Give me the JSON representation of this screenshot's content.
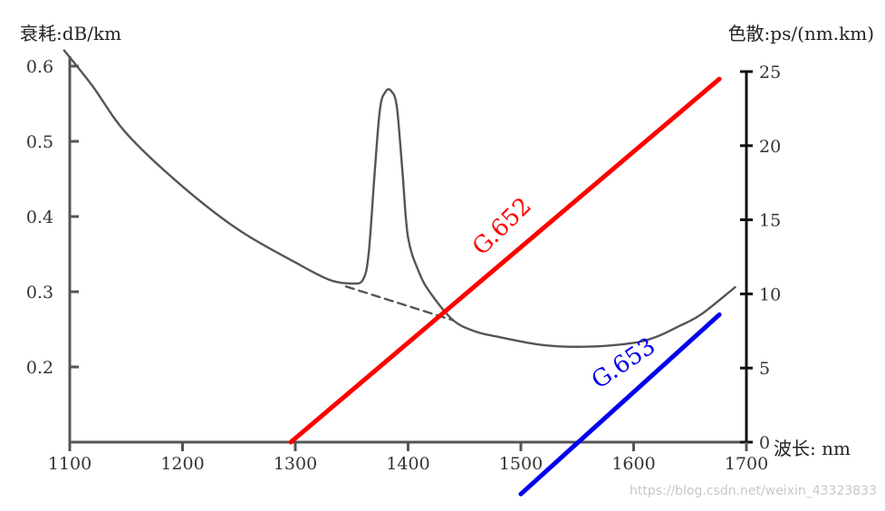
{
  "chart_data": {
    "type": "line",
    "left_axis": {
      "label": "衰耗:dB/km",
      "ticks": [
        "0.2",
        "0.3",
        "0.4",
        "0.5",
        "0.6"
      ],
      "tick_values": [
        0.2,
        0.3,
        0.4,
        0.5,
        0.6
      ],
      "range": [
        0.1,
        0.6
      ]
    },
    "right_axis": {
      "label": "色散:ps/(nm.km)",
      "ticks": [
        "0",
        "5",
        "10",
        "15",
        "20",
        "25"
      ],
      "tick_values": [
        0,
        5,
        10,
        15,
        20,
        25
      ],
      "range": [
        0,
        25
      ]
    },
    "x_axis": {
      "label": "波长: nm",
      "ticks": [
        "1100",
        "1200",
        "1300",
        "1400",
        "1500",
        "1600",
        "1700"
      ],
      "tick_values": [
        1100,
        1200,
        1300,
        1400,
        1500,
        1600,
        1700
      ],
      "range": [
        1100,
        1700
      ]
    },
    "grid": false,
    "series": [
      {
        "axis": "left",
        "color": "#555555",
        "style": "solid",
        "x": [
          1095,
          1120,
          1150,
          1200,
          1250,
          1300,
          1330,
          1350,
          1360,
          1365,
          1370,
          1375,
          1380,
          1385,
          1390,
          1395,
          1400,
          1410,
          1420,
          1440,
          1460,
          1480,
          1520,
          1560,
          1600,
          1620,
          1640,
          1660,
          1690
        ],
        "y": [
          0.621,
          0.574,
          0.511,
          0.44,
          0.382,
          0.339,
          0.316,
          0.311,
          0.316,
          0.35,
          0.45,
          0.542,
          0.566,
          0.567,
          0.546,
          0.46,
          0.372,
          0.325,
          0.298,
          0.262,
          0.247,
          0.24,
          0.229,
          0.227,
          0.232,
          0.24,
          0.254,
          0.27,
          0.306
        ]
      },
      {
        "axis": "left",
        "color": "#555555",
        "style": "dashed",
        "x": [
          1345,
          1440
        ],
        "y": [
          0.307,
          0.262
        ]
      },
      {
        "name": "G.652",
        "axis": "right",
        "color": "#ff0000",
        "x": [
          1296,
          1676
        ],
        "y": [
          0,
          24.5
        ]
      },
      {
        "name": "G.653",
        "axis": "right",
        "color": "#0000ee",
        "x": [
          1500,
          1676
        ],
        "y": [
          -3.5,
          8.6
        ]
      }
    ]
  },
  "watermark": "https://blog.csdn.net/weixin_43323833"
}
